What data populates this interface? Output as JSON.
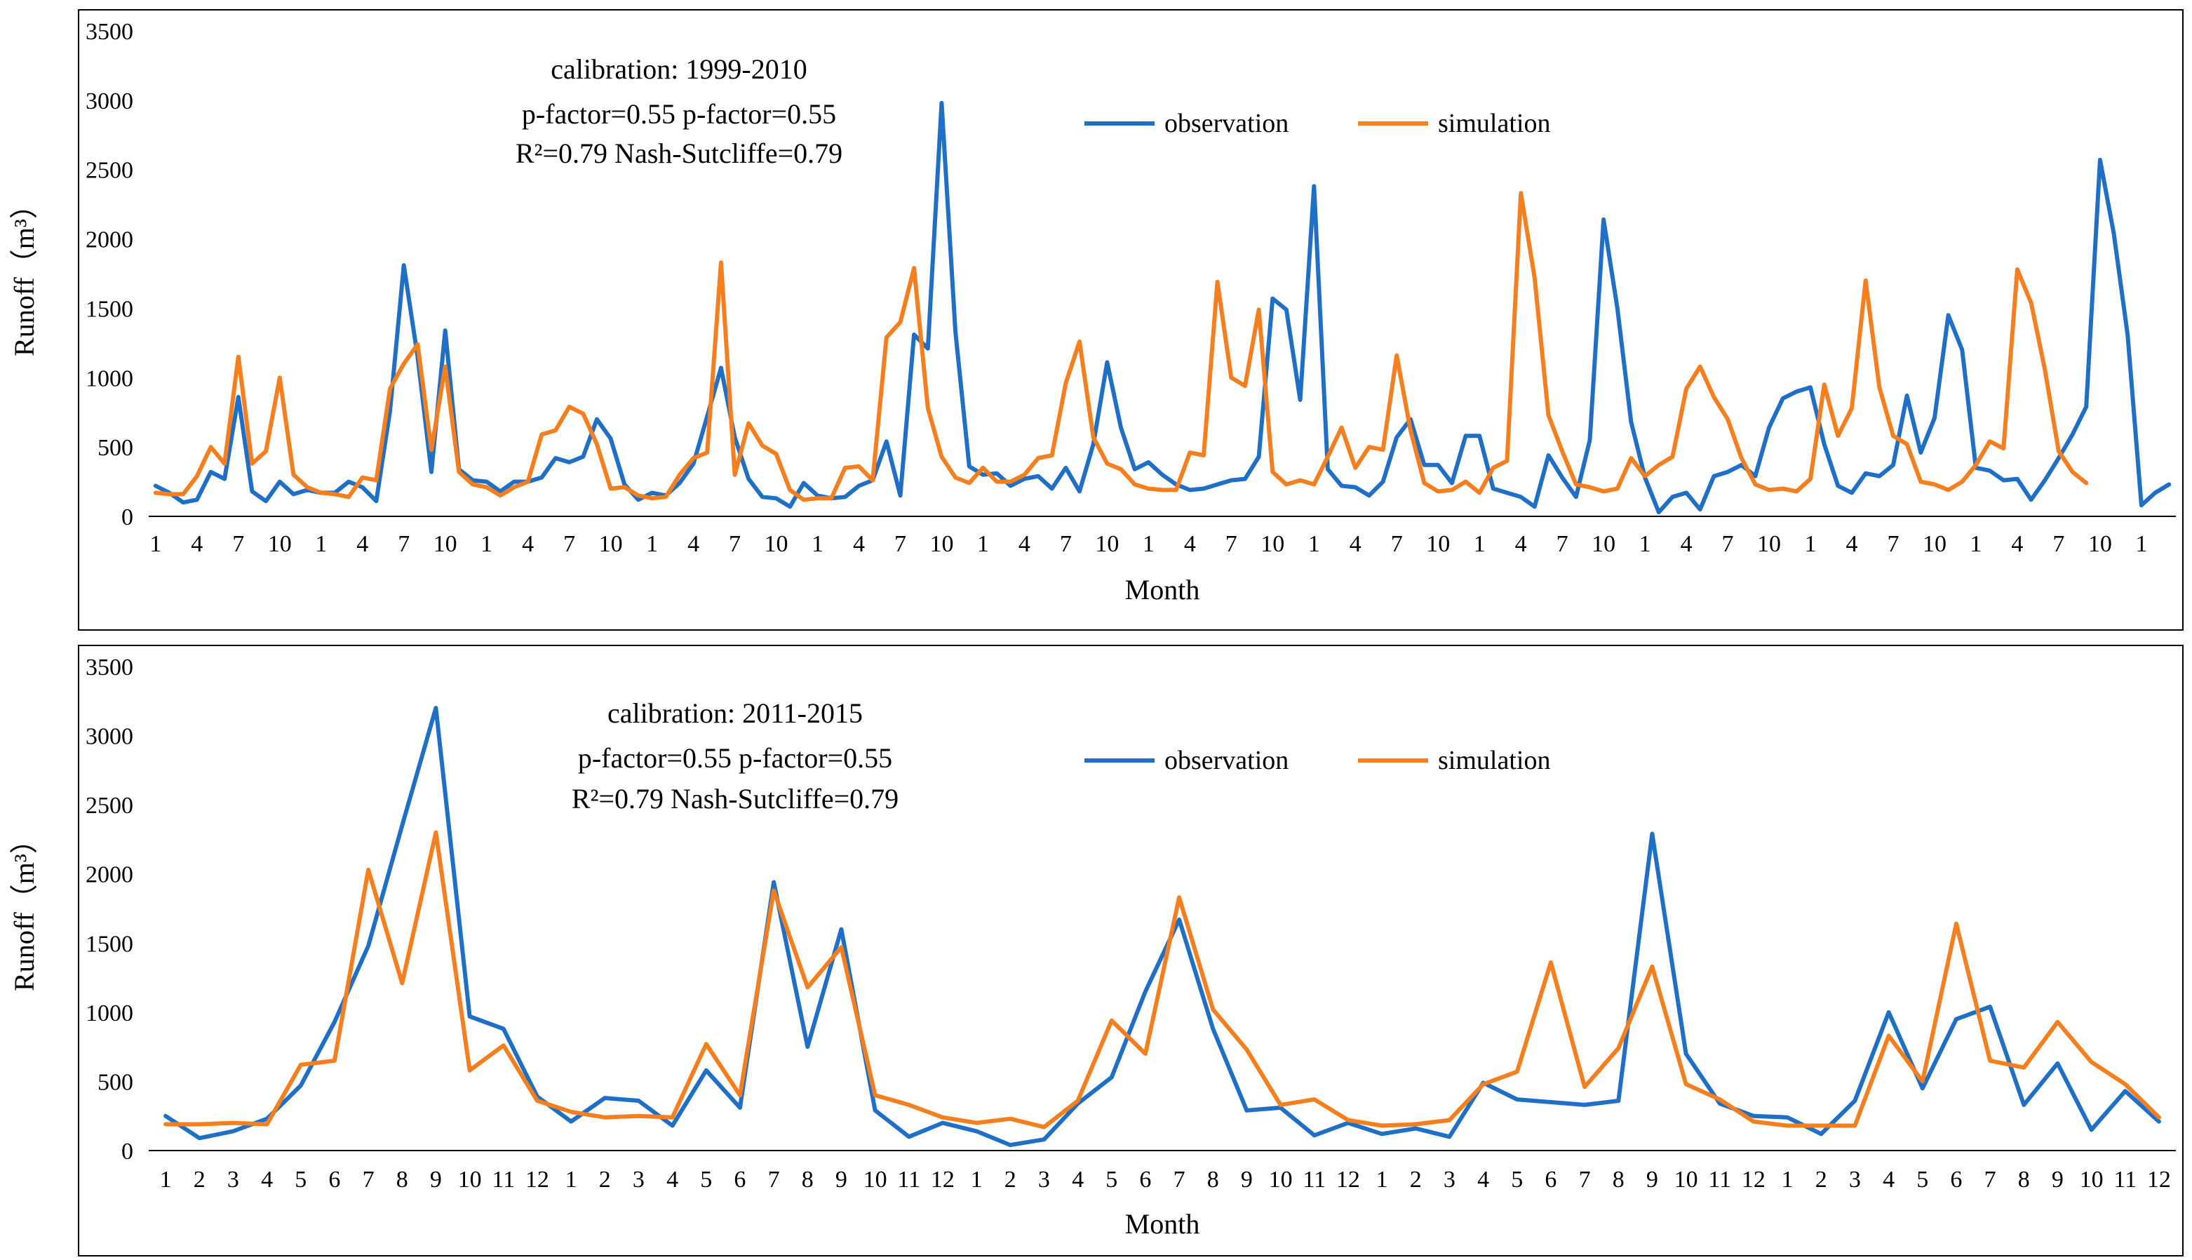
{
  "chart_data": [
    {
      "type": "line",
      "annotation_lines": [
        "calibration:  1999-2010",
        "p-factor=0.55   p-factor=0.55",
        "R²=0.79  Nash-Sutcliffe=0.79"
      ],
      "xlabel": "Month",
      "ylabel": "Runoff（m³）",
      "ylim": [
        0,
        3500
      ],
      "yticks": [
        0,
        500,
        1000,
        1500,
        2000,
        2500,
        3000,
        3500
      ],
      "x_tick_labels": [
        "1",
        "4",
        "7",
        "10"
      ],
      "x_tick_every": 3,
      "legend": "top-center",
      "colors": {
        "observation": "#1f6fc6",
        "simulation": "#f57f1f"
      },
      "series": [
        {
          "name": "observation",
          "values": [
            220,
            170,
            100,
            120,
            320,
            270,
            860,
            180,
            110,
            250,
            160,
            190,
            170,
            170,
            250,
            210,
            110,
            760,
            1810,
            1150,
            320,
            1340,
            340,
            260,
            250,
            180,
            250,
            250,
            280,
            420,
            390,
            430,
            700,
            560,
            230,
            120,
            170,
            150,
            240,
            380,
            720,
            1070,
            570,
            270,
            140,
            130,
            70,
            240,
            150,
            130,
            140,
            220,
            260,
            540,
            150,
            1310,
            1210,
            2980,
            1330,
            360,
            300,
            310,
            220,
            270,
            290,
            200,
            350,
            180,
            520,
            1110,
            640,
            340,
            390,
            300,
            230,
            190,
            200,
            230,
            260,
            270,
            430,
            1570,
            1490,
            840,
            2380,
            340,
            220,
            210,
            150,
            250,
            570,
            700,
            370,
            370,
            240,
            580,
            580,
            200,
            170,
            140,
            70,
            440,
            280,
            140,
            550,
            2140,
            1500,
            680,
            280,
            30,
            140,
            170,
            50,
            290,
            320,
            370,
            290,
            640,
            850,
            900,
            930,
            520,
            220,
            170,
            310,
            290,
            370,
            870,
            460,
            710,
            1450,
            1200,
            350,
            330,
            260,
            270,
            120,
            260,
            420,
            590,
            790,
            2570,
            2040,
            1310,
            80,
            170,
            230
          ]
        },
        {
          "name": "simulation",
          "values": [
            170,
            160,
            160,
            290,
            500,
            380,
            1150,
            380,
            470,
            1000,
            300,
            210,
            170,
            160,
            140,
            280,
            260,
            920,
            1100,
            1240,
            480,
            1080,
            320,
            230,
            210,
            150,
            210,
            250,
            590,
            620,
            790,
            740,
            520,
            200,
            210,
            150,
            130,
            140,
            300,
            420,
            460,
            1830,
            300,
            670,
            510,
            450,
            190,
            120,
            130,
            130,
            350,
            360,
            260,
            1290,
            1400,
            1790,
            780,
            430,
            280,
            240,
            350,
            250,
            250,
            300,
            420,
            440,
            960,
            1260,
            570,
            380,
            340,
            230,
            200,
            190,
            190,
            460,
            440,
            1690,
            1000,
            940,
            1490,
            320,
            230,
            260,
            230,
            430,
            640,
            350,
            500,
            480,
            1160,
            620,
            240,
            180,
            190,
            250,
            170,
            350,
            400,
            2330,
            1720,
            730,
            470,
            230,
            210,
            180,
            200,
            420,
            290,
            370,
            430,
            920,
            1080,
            860,
            700,
            420,
            230,
            190,
            200,
            180,
            270,
            950,
            580,
            780,
            1700,
            930,
            580,
            520,
            250,
            230,
            190,
            250,
            370,
            540,
            490,
            1780,
            1540,
            1060,
            470,
            320,
            240
          ]
        }
      ]
    },
    {
      "type": "line",
      "annotation_lines": [
        "calibration:  2011-2015",
        "p-factor=0.55   p-factor=0.55",
        "R²=0.79  Nash-Sutcliffe=0.79"
      ],
      "xlabel": "Month",
      "ylabel": "Runoff（m³）",
      "ylim": [
        0,
        3500
      ],
      "yticks": [
        0,
        500,
        1000,
        1500,
        2000,
        2500,
        3000,
        3500
      ],
      "x_tick_labels": [
        "1",
        "2",
        "3",
        "4",
        "5",
        "6",
        "7",
        "8",
        "9",
        "10",
        "11",
        "12"
      ],
      "x_tick_every": 1,
      "legend": "top-center",
      "colors": {
        "observation": "#1f6fc6",
        "simulation": "#f57f1f"
      },
      "series": [
        {
          "name": "observation",
          "values": [
            250,
            90,
            140,
            230,
            470,
            930,
            1480,
            2350,
            3200,
            970,
            880,
            390,
            210,
            380,
            360,
            180,
            580,
            310,
            1940,
            750,
            1600,
            290,
            100,
            200,
            140,
            40,
            80,
            340,
            530,
            1150,
            1670,
            880,
            290,
            310,
            110,
            200,
            120,
            160,
            100,
            490,
            370,
            350,
            330,
            360,
            2290,
            700,
            340,
            250,
            240,
            120,
            360,
            1000,
            450,
            950,
            1040,
            330,
            630,
            150,
            430,
            210
          ]
        },
        {
          "name": "simulation",
          "values": [
            190,
            190,
            200,
            190,
            620,
            650,
            2030,
            1210,
            2300,
            580,
            760,
            360,
            280,
            240,
            250,
            240,
            770,
            400,
            1880,
            1180,
            1470,
            400,
            330,
            240,
            200,
            230,
            170,
            360,
            940,
            700,
            1830,
            1020,
            730,
            330,
            370,
            220,
            180,
            190,
            220,
            480,
            570,
            1360,
            460,
            740,
            1330,
            480,
            370,
            210,
            180,
            180,
            180,
            830,
            500,
            1640,
            650,
            600,
            930,
            640,
            480,
            240
          ]
        }
      ]
    }
  ]
}
